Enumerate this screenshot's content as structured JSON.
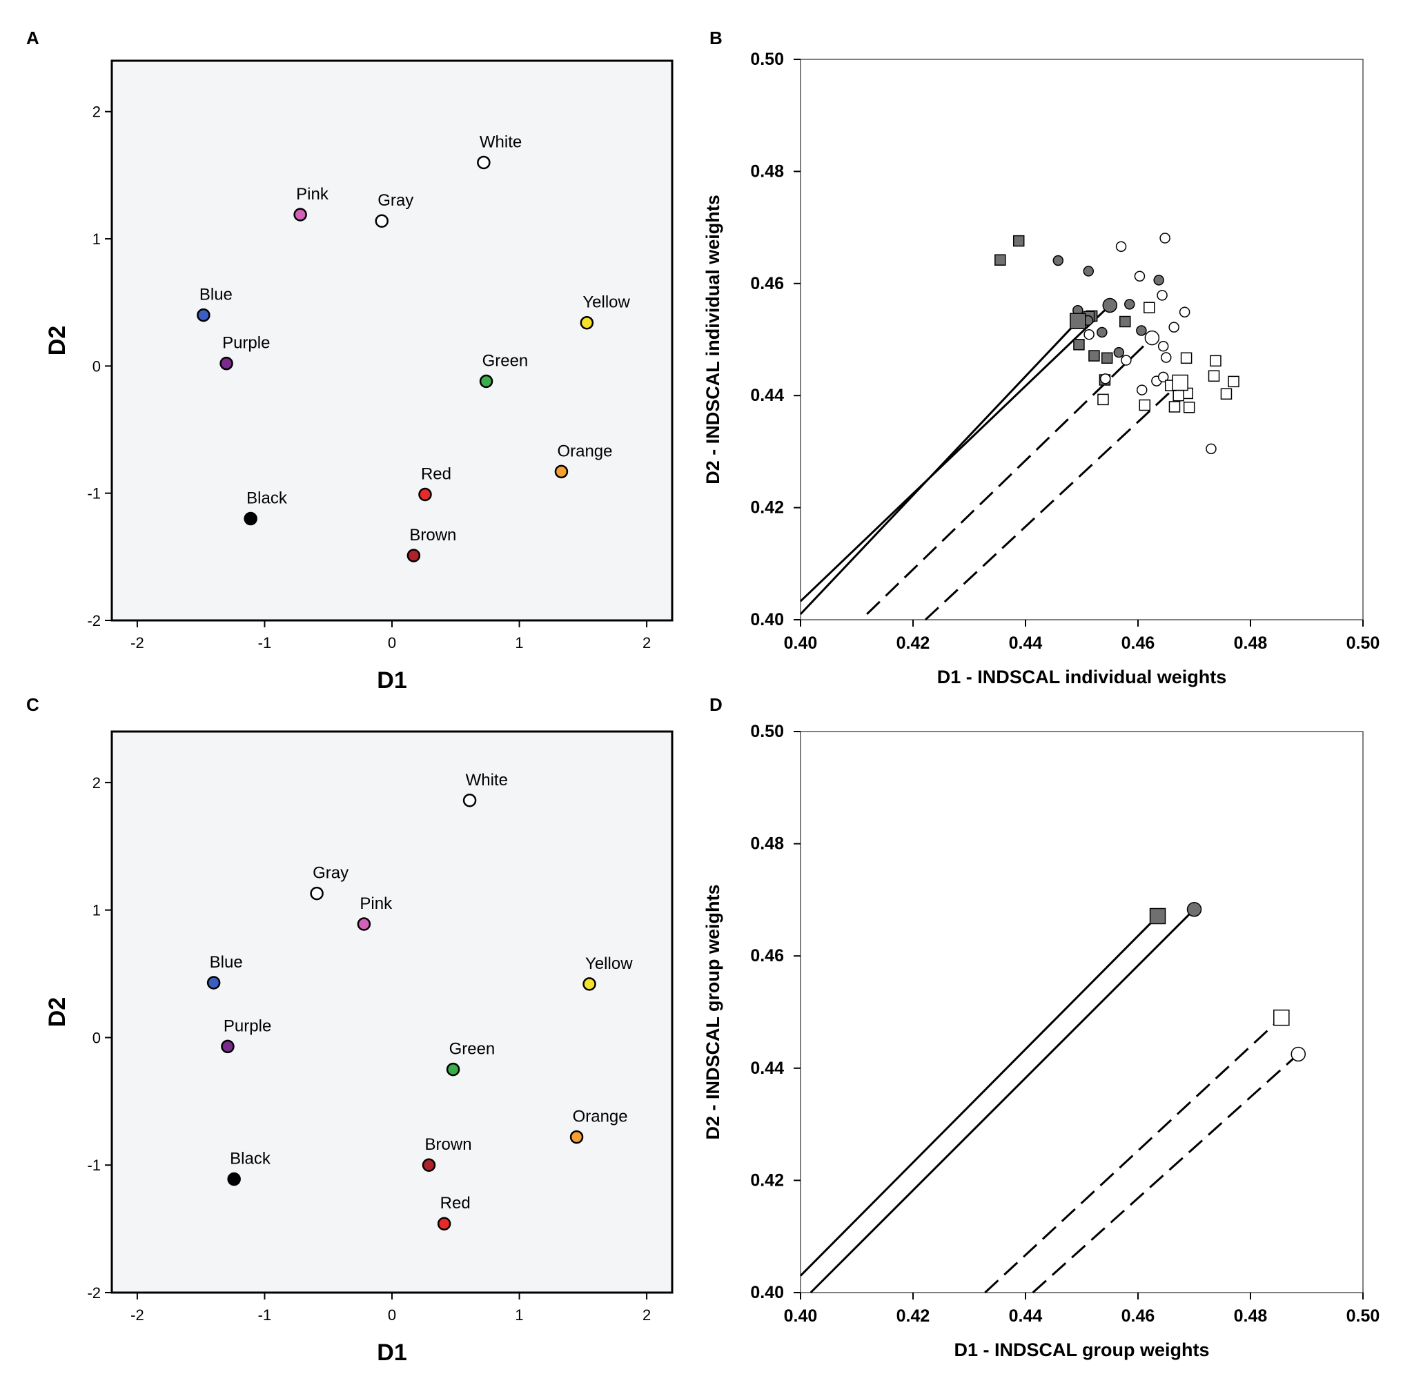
{
  "chart_data": [
    {
      "panel": "A",
      "type": "scatter",
      "xlabel": "D1",
      "ylabel": "D2",
      "xlim": [
        -2.2,
        2.2
      ],
      "ylim": [
        -2,
        2.4
      ],
      "xticks": [
        "-2",
        "-1",
        "0",
        "1",
        "2"
      ],
      "yticks": [
        "-2",
        "-1",
        "0",
        "1",
        "2"
      ],
      "points": [
        {
          "label": "White",
          "x": 0.72,
          "y": 1.6,
          "color": "#ffffff"
        },
        {
          "label": "Pink",
          "x": -0.72,
          "y": 1.19,
          "color": "#d062b8"
        },
        {
          "label": "Gray",
          "x": -0.08,
          "y": 1.14,
          "color": "#ffffff"
        },
        {
          "label": "Blue",
          "x": -1.48,
          "y": 0.4,
          "color": "#3b5fc0"
        },
        {
          "label": "Yellow",
          "x": 1.53,
          "y": 0.34,
          "color": "#f4e12a"
        },
        {
          "label": "Purple",
          "x": -1.3,
          "y": 0.02,
          "color": "#7a2c8c"
        },
        {
          "label": "Green",
          "x": 0.74,
          "y": -0.12,
          "color": "#3aae4a"
        },
        {
          "label": "Orange",
          "x": 1.33,
          "y": -0.83,
          "color": "#f5a033"
        },
        {
          "label": "Red",
          "x": 0.26,
          "y": -1.01,
          "color": "#e52a2a"
        },
        {
          "label": "Black",
          "x": -1.11,
          "y": -1.2,
          "color": "#000000"
        },
        {
          "label": "Brown",
          "x": 0.17,
          "y": -1.49,
          "color": "#b0222a"
        }
      ]
    },
    {
      "panel": "B",
      "type": "scatter",
      "xlabel": "D1 - INDSCAL individual weights",
      "ylabel": "D2 - INDSCAL individual weights",
      "xlim": [
        0.4,
        0.5
      ],
      "ylim": [
        0.4,
        0.5
      ],
      "xticks": [
        "0.40",
        "0.42",
        "0.44",
        "0.46",
        "0.48",
        "0.50"
      ],
      "yticks": [
        "0.40",
        "0.42",
        "0.44",
        "0.46",
        "0.48",
        "0.50"
      ],
      "series": [
        {
          "name": "filled squares",
          "shape": "square",
          "fill": "#707070",
          "points": [
            [
              0.4355,
              0.4642
            ],
            [
              0.4388,
              0.4676
            ],
            [
              0.4503,
              0.4538
            ],
            [
              0.4518,
              0.4542
            ],
            [
              0.4495,
              0.4491
            ],
            [
              0.4522,
              0.4471
            ],
            [
              0.4577,
              0.4532
            ],
            [
              0.4545,
              0.4467
            ],
            [
              0.4513,
              0.4541
            ],
            [
              0.4541,
              0.4428
            ]
          ]
        },
        {
          "name": "filled circles",
          "shape": "circle",
          "fill": "#707070",
          "points": [
            [
              0.4458,
              0.4641
            ],
            [
              0.4512,
              0.4622
            ],
            [
              0.4637,
              0.4606
            ],
            [
              0.4493,
              0.4552
            ],
            [
              0.4536,
              0.4513
            ],
            [
              0.4566,
              0.4477
            ],
            [
              0.4585,
              0.4563
            ],
            [
              0.4606,
              0.4516
            ],
            [
              0.4511,
              0.4534
            ]
          ]
        },
        {
          "name": "open circles",
          "shape": "circle",
          "fill": "#ffffff",
          "points": [
            [
              0.4648,
              0.4681
            ],
            [
              0.457,
              0.4666
            ],
            [
              0.4603,
              0.4613
            ],
            [
              0.4643,
              0.4579
            ],
            [
              0.4683,
              0.4549
            ],
            [
              0.4664,
              0.4522
            ],
            [
              0.4645,
              0.4488
            ],
            [
              0.465,
              0.4468
            ],
            [
              0.4579,
              0.4463
            ],
            [
              0.4513,
              0.4509
            ],
            [
              0.4542,
              0.443
            ],
            [
              0.4633,
              0.4426
            ],
            [
              0.4645,
              0.4433
            ],
            [
              0.4607,
              0.441
            ],
            [
              0.473,
              0.4305
            ]
          ]
        },
        {
          "name": "open squares",
          "shape": "square",
          "fill": "#ffffff",
          "points": [
            [
              0.462,
              0.4557
            ],
            [
              0.4686,
              0.4467
            ],
            [
              0.4738,
              0.4462
            ],
            [
              0.4735,
              0.4435
            ],
            [
              0.477,
              0.4425
            ],
            [
              0.4757,
              0.4403
            ],
            [
              0.4688,
              0.4404
            ],
            [
              0.4672,
              0.44
            ],
            [
              0.4691,
              0.4379
            ],
            [
              0.4665,
              0.438
            ],
            [
              0.4612,
              0.4383
            ],
            [
              0.4538,
              0.4393
            ],
            [
              0.4658,
              0.4418
            ]
          ]
        },
        {
          "name": "large markers",
          "shape": "mixed",
          "points": [
            [
              0.455,
              0.4561
            ],
            [
              0.4493,
              0.4533
            ],
            [
              0.4625,
              0.4503
            ],
            [
              0.4675,
              0.4423
            ]
          ]
        }
      ],
      "lines": [
        {
          "style": "solid",
          "from": [
            0.4,
            0.4033
          ],
          "to": [
            0.455,
            0.4561
          ]
        },
        {
          "style": "solid",
          "from": [
            0.4,
            0.401
          ],
          "to": [
            0.4493,
            0.4533
          ]
        },
        {
          "style": "dashed",
          "from": [
            0.4118,
            0.401
          ],
          "to": [
            0.4625,
            0.4503
          ]
        },
        {
          "style": "dashed",
          "from": [
            0.4222,
            0.4
          ],
          "to": [
            0.4675,
            0.4423
          ]
        }
      ]
    },
    {
      "panel": "C",
      "type": "scatter",
      "xlabel": "D1",
      "ylabel": "D2",
      "xlim": [
        -2.2,
        2.2
      ],
      "ylim": [
        -2,
        2.4
      ],
      "xticks": [
        "-2",
        "-1",
        "0",
        "1",
        "2"
      ],
      "yticks": [
        "-2",
        "-1",
        "0",
        "1",
        "2"
      ],
      "points": [
        {
          "label": "White",
          "x": 0.61,
          "y": 1.86,
          "color": "#ffffff"
        },
        {
          "label": "Gray",
          "x": -0.59,
          "y": 1.13,
          "color": "#ffffff"
        },
        {
          "label": "Pink",
          "x": -0.22,
          "y": 0.89,
          "color": "#d062b8"
        },
        {
          "label": "Blue",
          "x": -1.4,
          "y": 0.43,
          "color": "#3b5fc0"
        },
        {
          "label": "Yellow",
          "x": 1.55,
          "y": 0.42,
          "color": "#f4e12a"
        },
        {
          "label": "Purple",
          "x": -1.29,
          "y": -0.07,
          "color": "#7a2c8c"
        },
        {
          "label": "Green",
          "x": 0.48,
          "y": -0.25,
          "color": "#3aae4a"
        },
        {
          "label": "Orange",
          "x": 1.45,
          "y": -0.78,
          "color": "#f5a033"
        },
        {
          "label": "Brown",
          "x": 0.29,
          "y": -1.0,
          "color": "#b0222a"
        },
        {
          "label": "Black",
          "x": -1.24,
          "y": -1.11,
          "color": "#000000"
        },
        {
          "label": "Red",
          "x": 0.41,
          "y": -1.46,
          "color": "#e52a2a"
        }
      ]
    },
    {
      "panel": "D",
      "type": "scatter",
      "xlabel": "D1 - INDSCAL group weights",
      "ylabel": "D2 - INDSCAL group weights",
      "xlim": [
        0.4,
        0.5
      ],
      "ylim": [
        0.4,
        0.5
      ],
      "xticks": [
        "0.40",
        "0.42",
        "0.44",
        "0.46",
        "0.48",
        "0.50"
      ],
      "yticks": [
        "0.40",
        "0.42",
        "0.44",
        "0.46",
        "0.48",
        "0.50"
      ],
      "series": [
        {
          "name": "filled square",
          "shape": "square",
          "fill": "#707070",
          "points": [
            [
              0.4635,
              0.4671
            ]
          ]
        },
        {
          "name": "filled circle",
          "shape": "circle",
          "fill": "#707070",
          "points": [
            [
              0.47,
              0.4683
            ]
          ]
        },
        {
          "name": "open square",
          "shape": "square",
          "fill": "#ffffff",
          "points": [
            [
              0.4855,
              0.449
            ]
          ]
        },
        {
          "name": "open circle",
          "shape": "circle",
          "fill": "#ffffff",
          "points": [
            [
              0.4885,
              0.4425
            ]
          ]
        }
      ],
      "lines": [
        {
          "style": "solid",
          "from": [
            0.4,
            0.403
          ],
          "to": [
            0.4635,
            0.4671
          ]
        },
        {
          "style": "solid",
          "from": [
            0.4018,
            0.4
          ],
          "to": [
            0.47,
            0.4683
          ]
        },
        {
          "style": "dashed",
          "from": [
            0.4328,
            0.4
          ],
          "to": [
            0.4855,
            0.449
          ]
        },
        {
          "style": "dashed",
          "from": [
            0.4413,
            0.4
          ],
          "to": [
            0.4885,
            0.4425
          ]
        }
      ]
    }
  ]
}
